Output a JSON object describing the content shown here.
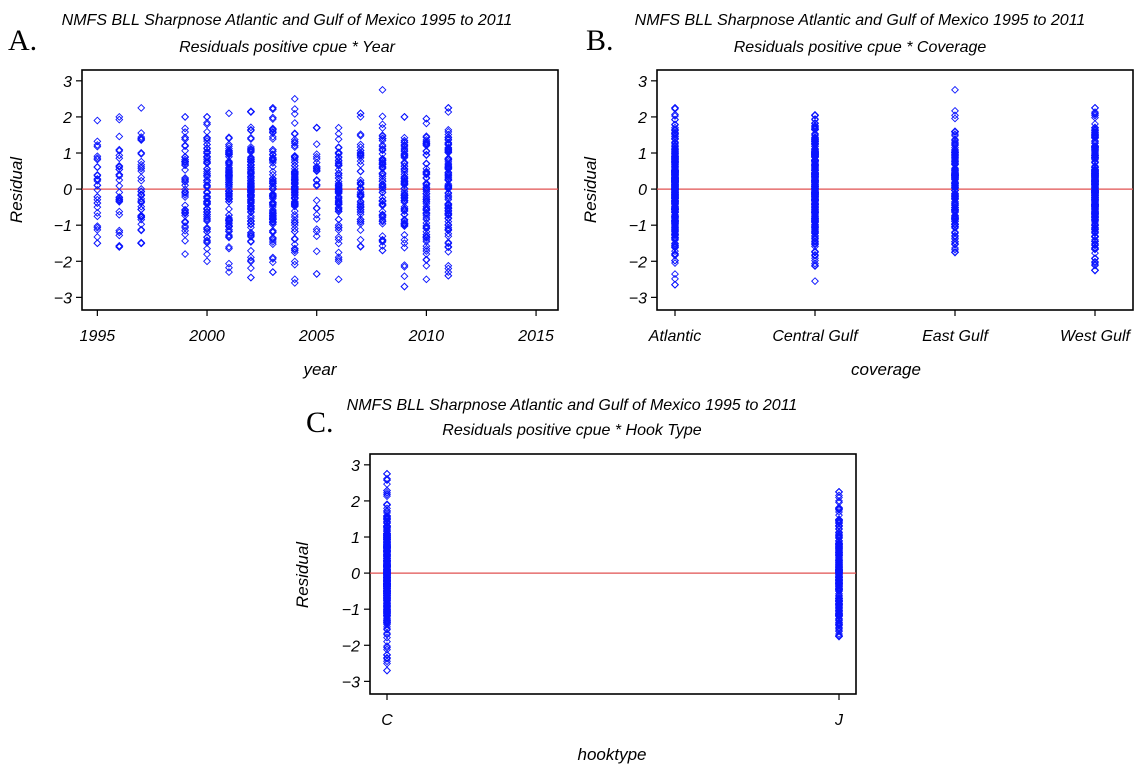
{
  "colors": {
    "marker": "#0a14ff",
    "reference_line": "#e05050",
    "axis": "#000000"
  },
  "chart_data": [
    {
      "panel_label": "A.",
      "type": "scatter",
      "marker": "diamond",
      "title": "NMFS BLL Sharpnose Atlantic and Gulf of Mexico 1995 to 2011",
      "subtitle": "Residuals positive cpue * Year",
      "xlabel": "year",
      "ylabel": "Residual",
      "xlim": [
        1994.3,
        2016
      ],
      "ylim": [
        -3.35,
        3.3
      ],
      "xticks": [
        1995,
        2000,
        2005,
        2010,
        2015
      ],
      "yticks": [
        -3,
        -2,
        -1,
        0,
        1,
        2,
        3
      ],
      "ytick_labels": [
        "−3",
        "−2",
        "−1",
        "0",
        "1",
        "2",
        "3"
      ],
      "reference_line_y": 0,
      "grid": false,
      "columns": [
        {
          "x": 1995,
          "min": -1.5,
          "max": 1.9,
          "n": 30
        },
        {
          "x": 1996,
          "min": -1.6,
          "max": 2.0,
          "n": 32
        },
        {
          "x": 1997,
          "min": -1.5,
          "max": 2.25,
          "n": 45
        },
        {
          "x": 1999,
          "min": -1.8,
          "max": 2.0,
          "n": 48
        },
        {
          "x": 2000,
          "min": -2.0,
          "max": 2.0,
          "n": 80
        },
        {
          "x": 2001,
          "min": -2.3,
          "max": 2.1,
          "n": 90
        },
        {
          "x": 2002,
          "min": -2.45,
          "max": 2.15,
          "n": 110
        },
        {
          "x": 2003,
          "min": -2.3,
          "max": 2.25,
          "n": 95
        },
        {
          "x": 2004,
          "min": -2.6,
          "max": 2.5,
          "n": 90
        },
        {
          "x": 2005,
          "min": -2.35,
          "max": 1.7,
          "n": 30
        },
        {
          "x": 2006,
          "min": -2.5,
          "max": 1.7,
          "n": 70
        },
        {
          "x": 2007,
          "min": -1.6,
          "max": 2.1,
          "n": 55
        },
        {
          "x": 2008,
          "min": -1.7,
          "max": 2.75,
          "n": 75
        },
        {
          "x": 2009,
          "min": -2.7,
          "max": 2.0,
          "n": 85
        },
        {
          "x": 2010,
          "min": -2.5,
          "max": 1.95,
          "n": 80
        },
        {
          "x": 2011,
          "min": -2.4,
          "max": 2.25,
          "n": 110
        }
      ]
    },
    {
      "panel_label": "B.",
      "type": "scatter",
      "marker": "diamond",
      "title": "NMFS BLL Sharpnose Atlantic and Gulf of Mexico 1995 to 2011",
      "subtitle": "Residuals positive cpue * Coverage",
      "xlabel": "coverage",
      "ylabel": "Residual",
      "categories": [
        "Atlantic",
        "Central Gulf",
        "East Gulf",
        "West Gulf"
      ],
      "ylim": [
        -3.35,
        3.3
      ],
      "yticks": [
        -3,
        -2,
        -1,
        0,
        1,
        2,
        3
      ],
      "ytick_labels": [
        "−3",
        "−2",
        "−1",
        "0",
        "1",
        "2",
        "3"
      ],
      "reference_line_y": 0,
      "grid": false,
      "columns": [
        {
          "category": "Atlantic",
          "min": -2.65,
          "max": 2.25,
          "n": 320
        },
        {
          "category": "Central Gulf",
          "min": -2.55,
          "max": 2.05,
          "n": 320
        },
        {
          "category": "East Gulf",
          "min": -1.75,
          "max": 2.75,
          "n": 170
        },
        {
          "category": "West Gulf",
          "min": -2.25,
          "max": 2.25,
          "n": 300
        }
      ]
    },
    {
      "panel_label": "C.",
      "type": "scatter",
      "marker": "diamond",
      "title": "NMFS BLL Sharpnose Atlantic and Gulf of Mexico 1995 to 2011",
      "subtitle": "Residuals positive cpue * Hook Type",
      "xlabel": "hooktype",
      "ylabel": "Residual",
      "categories": [
        "C",
        "J"
      ],
      "ylim": [
        -3.35,
        3.3
      ],
      "yticks": [
        -3,
        -2,
        -1,
        0,
        1,
        2,
        3
      ],
      "ytick_labels": [
        "−3",
        "−2",
        "−1",
        "0",
        "1",
        "2",
        "3"
      ],
      "reference_line_y": 0,
      "grid": false,
      "columns": [
        {
          "category": "C",
          "min": -2.7,
          "max": 2.75,
          "n": 420
        },
        {
          "category": "J",
          "min": -1.75,
          "max": 2.25,
          "n": 260
        }
      ]
    }
  ]
}
